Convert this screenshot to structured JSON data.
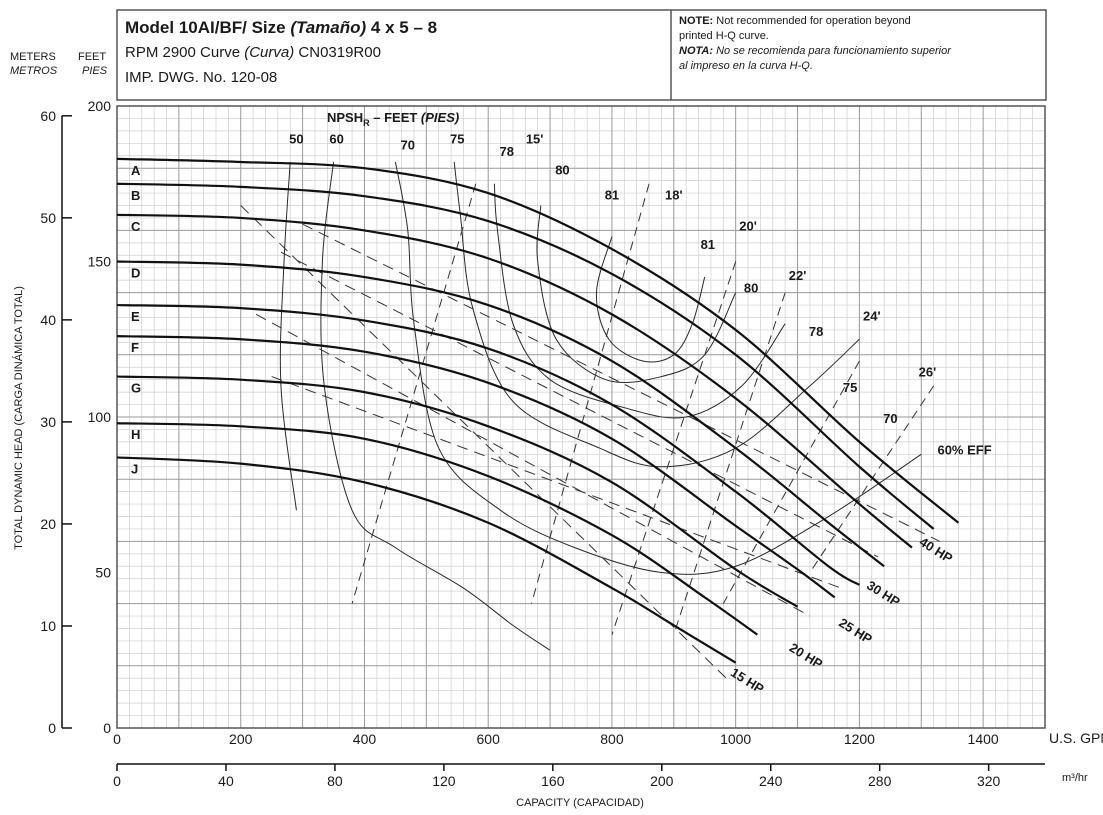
{
  "header": {
    "title_line": "Model 10AI/BF/ Size ",
    "title_italic": "(Tamaño)",
    "title_size": "  4 x 5 – 8",
    "rpm_pre": "RPM 2900 Curve ",
    "rpm_italic": "(Curva)",
    "rpm_post": " CN0319R00",
    "dwg": "IMP. DWG. No. 120-08",
    "note_bold": "NOTE:",
    "note_line1": " Not recommended for operation beyond",
    "note_line2": "printed H-Q curve.",
    "nota_bold": "NOTA:",
    "nota_line1": " No se recomienda para funcionamiento superior",
    "nota_line2": "al impreso en la curva H-Q."
  },
  "chart_data": {
    "type": "line",
    "title": "Model 10AI/BF/ Size (Tamaño) 4 x 5 – 8",
    "xlabel": "CAPACITY (CAPACIDAD)",
    "x_unit_primary": "U.S. GPM",
    "x_unit_secondary": "m³/hr",
    "ylabel": "TOTAL DYNAMIC HEAD (CARGA DINÁMICA TOTAL)",
    "y_unit_feet": "FEET",
    "y_unit_feet_es": "PIES",
    "y_unit_meters": "METERS",
    "y_unit_meters_es": "METROS",
    "xlim": [
      0,
      1500
    ],
    "ylim_feet": [
      0,
      200
    ],
    "x_ticks": [
      "0",
      "200",
      "400",
      "600",
      "800",
      "1000",
      "1200",
      "1400"
    ],
    "x_ticks_m3": [
      "0",
      "40",
      "80",
      "120",
      "160",
      "200",
      "240",
      "280",
      "320"
    ],
    "y_ticks_feet": [
      "0",
      "50",
      "100",
      "150",
      "200"
    ],
    "y_ticks_meters": [
      "0",
      "10",
      "20",
      "30",
      "40",
      "50",
      "60"
    ],
    "grid": true,
    "head_curves": [
      {
        "name": "A",
        "points": [
          [
            0,
            183
          ],
          [
            200,
            182
          ],
          [
            400,
            180
          ],
          [
            600,
            172
          ],
          [
            800,
            154
          ],
          [
            1000,
            128
          ],
          [
            1200,
            92
          ],
          [
            1360,
            66
          ]
        ]
      },
      {
        "name": "B",
        "points": [
          [
            0,
            175
          ],
          [
            200,
            174
          ],
          [
            400,
            171
          ],
          [
            600,
            163
          ],
          [
            800,
            146
          ],
          [
            1000,
            120
          ],
          [
            1200,
            84
          ],
          [
            1320,
            64
          ]
        ]
      },
      {
        "name": "C",
        "points": [
          [
            0,
            165
          ],
          [
            200,
            164
          ],
          [
            400,
            160
          ],
          [
            600,
            151
          ],
          [
            800,
            133
          ],
          [
            1000,
            106
          ],
          [
            1200,
            72
          ],
          [
            1285,
            58
          ]
        ]
      },
      {
        "name": "D",
        "points": [
          [
            0,
            150
          ],
          [
            200,
            149
          ],
          [
            400,
            145
          ],
          [
            600,
            136
          ],
          [
            800,
            118
          ],
          [
            1000,
            90
          ],
          [
            1150,
            66
          ],
          [
            1240,
            52
          ]
        ]
      },
      {
        "name": "E",
        "points": [
          [
            0,
            136
          ],
          [
            200,
            135
          ],
          [
            400,
            131
          ],
          [
            600,
            122
          ],
          [
            800,
            104
          ],
          [
            1000,
            76
          ],
          [
            1150,
            52
          ],
          [
            1200,
            46
          ]
        ]
      },
      {
        "name": "F",
        "points": [
          [
            0,
            126
          ],
          [
            200,
            125
          ],
          [
            400,
            121
          ],
          [
            600,
            111
          ],
          [
            800,
            93
          ],
          [
            1000,
            65
          ],
          [
            1100,
            51
          ],
          [
            1160,
            42
          ]
        ]
      },
      {
        "name": "G",
        "points": [
          [
            0,
            113
          ],
          [
            200,
            112
          ],
          [
            400,
            108
          ],
          [
            600,
            97
          ],
          [
            800,
            79
          ],
          [
            1000,
            51
          ],
          [
            1100,
            39
          ]
        ]
      },
      {
        "name": "H",
        "points": [
          [
            0,
            98
          ],
          [
            200,
            97
          ],
          [
            400,
            93
          ],
          [
            600,
            81
          ],
          [
            800,
            62
          ],
          [
            950,
            42
          ],
          [
            1035,
            30
          ]
        ]
      },
      {
        "name": "J",
        "points": [
          [
            0,
            87
          ],
          [
            200,
            85
          ],
          [
            400,
            79
          ],
          [
            600,
            66
          ],
          [
            800,
            45
          ],
          [
            900,
            33
          ],
          [
            1000,
            21
          ]
        ]
      }
    ],
    "curve_labels": [
      "A",
      "B",
      "C",
      "D",
      "E",
      "F",
      "G",
      "H",
      "J"
    ],
    "efficiency_labels": [
      "50",
      "60",
      "70",
      "75",
      "78",
      "80",
      "81",
      "81",
      "80",
      "78",
      "75",
      "70",
      "60% EFF"
    ],
    "npshr_title": "NPSH",
    "npshr_sub": "R",
    "npshr_rest": " – FEET ",
    "npshr_italic": "(PIES)",
    "npshr_labels": [
      "15'",
      "18'",
      "20'",
      "22'",
      "24'",
      "26'"
    ],
    "hp_labels": [
      "15 HP",
      "20 HP",
      "25 HP",
      "30 HP",
      "40 HP"
    ]
  }
}
